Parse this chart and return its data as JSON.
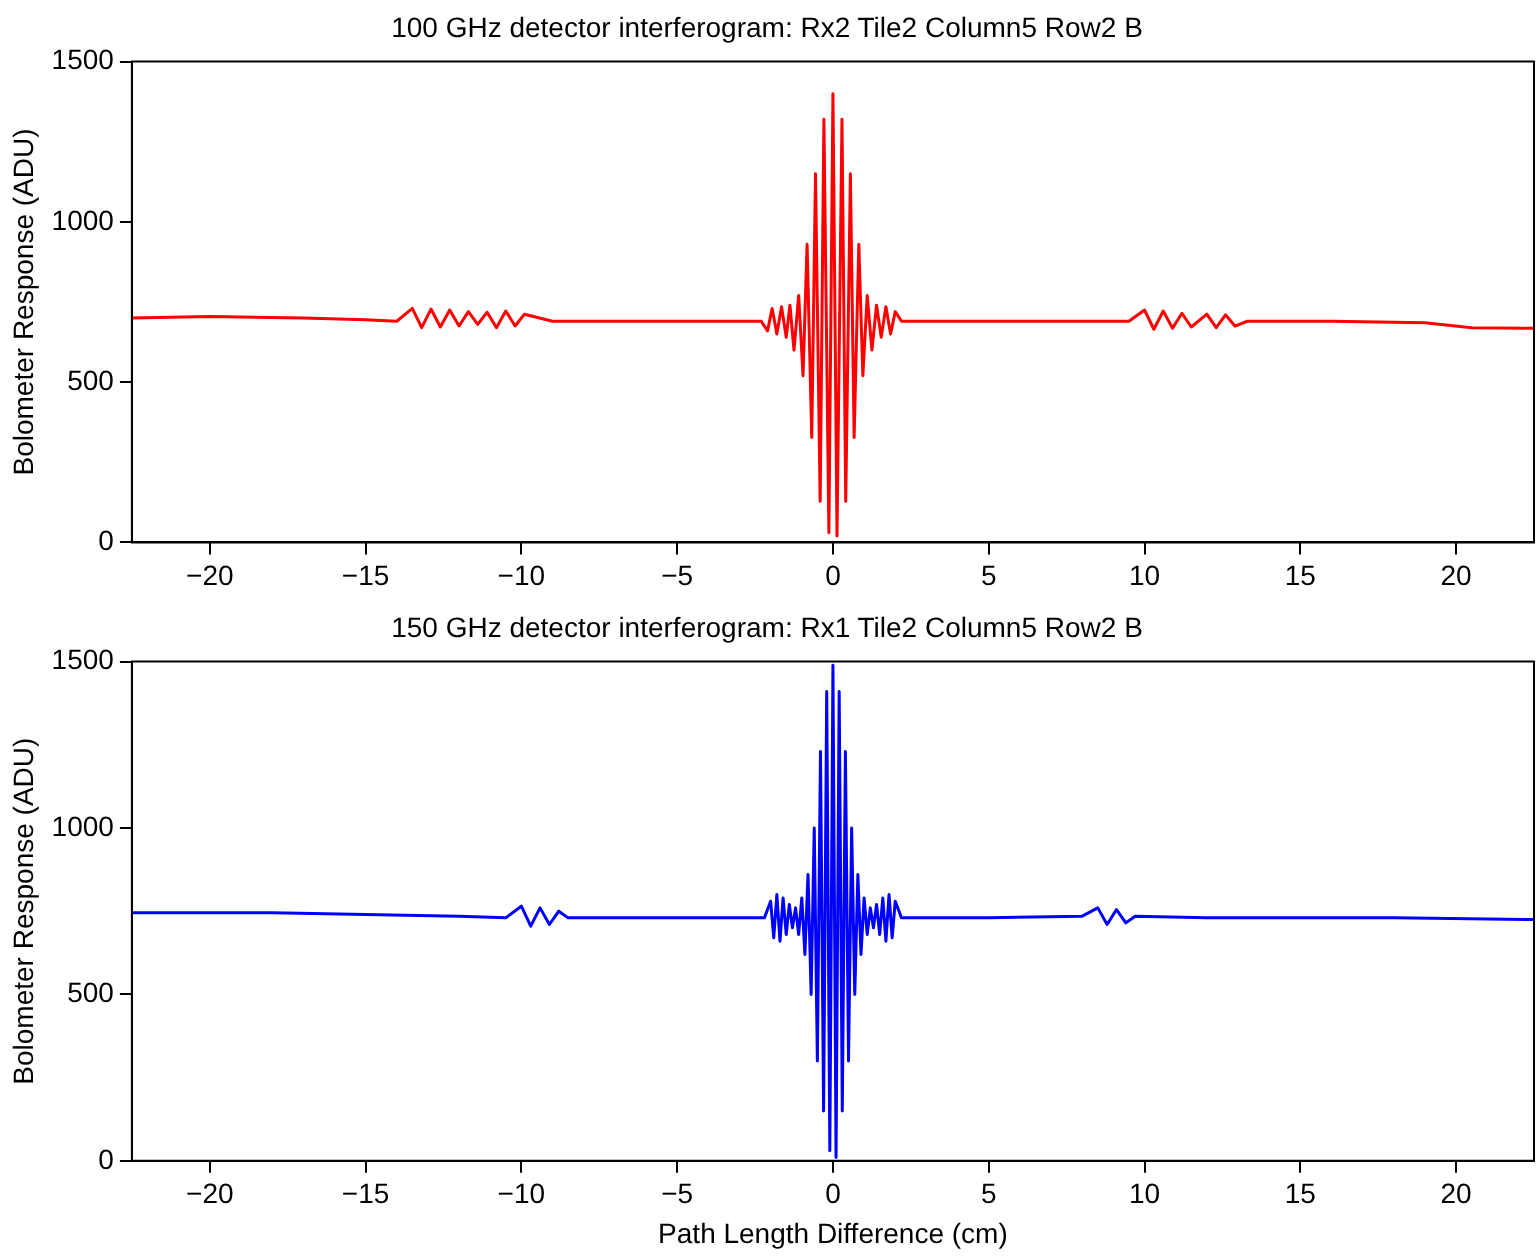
{
  "chart_data": [
    {
      "type": "line",
      "title": "100 GHz detector interferogram: Rx2 Tile2 Column5 Row2 B",
      "ylabel": "Bolometer Response (ADU)",
      "legend": false,
      "grid": false,
      "marker": "none",
      "line_style": "solid",
      "xlim": [
        -22.5,
        22.5
      ],
      "xticks": [
        {
          "value": -20,
          "label": "−20"
        },
        {
          "value": -15,
          "label": "−15"
        },
        {
          "value": -10,
          "label": "−10"
        },
        {
          "value": -5,
          "label": "−5"
        },
        0,
        5,
        10,
        15,
        20
      ],
      "ylim": [
        0,
        1500
      ],
      "yticks": [
        0,
        500,
        1000,
        1500
      ],
      "series": [
        {
          "color": "#ff0000",
          "x": [
            -22.5,
            -20,
            -17,
            -15,
            -14,
            -13.5,
            -13.2,
            -12.9,
            -12.6,
            -12.3,
            -12,
            -11.7,
            -11.4,
            -11.1,
            -10.8,
            -10.5,
            -10.2,
            -9.9,
            -9,
            -6,
            -3,
            -2.3,
            -2.1,
            -1.95,
            -1.8,
            -1.65,
            -1.5,
            -1.38,
            -1.25,
            -1.1,
            -0.96,
            -0.83,
            -0.68,
            -0.56,
            -0.41,
            -0.29,
            -0.13,
            0,
            0.13,
            0.29,
            0.41,
            0.56,
            0.68,
            0.83,
            0.96,
            1.1,
            1.25,
            1.4,
            1.55,
            1.7,
            1.85,
            2,
            2.2,
            5,
            8,
            9.5,
            10,
            10.3,
            10.6,
            10.9,
            11.2,
            11.5,
            12,
            12.3,
            12.6,
            12.9,
            13.3,
            16,
            19,
            20.5,
            22.5
          ],
          "values": [
            700,
            705,
            700,
            695,
            690,
            730,
            670,
            728,
            672,
            725,
            675,
            720,
            680,
            718,
            670,
            722,
            675,
            712,
            690,
            690,
            690,
            690,
            660,
            730,
            650,
            735,
            640,
            740,
            600,
            770,
            520,
            930,
            327,
            1150,
            128,
            1320,
            30,
            1400,
            20,
            1320,
            128,
            1150,
            327,
            930,
            520,
            770,
            600,
            740,
            640,
            735,
            650,
            720,
            690,
            690,
            690,
            690,
            725,
            665,
            722,
            668,
            715,
            672,
            712,
            670,
            710,
            675,
            690,
            690,
            685,
            670,
            668
          ]
        }
      ]
    },
    {
      "type": "line",
      "title": "150 GHz detector interferogram: Rx1 Tile2 Column5 Row2 B",
      "xlabel": "Path Length Difference (cm)",
      "ylabel": "Bolometer Response (ADU)",
      "legend": false,
      "grid": false,
      "marker": "none",
      "line_style": "solid",
      "xlim": [
        -22.5,
        22.5
      ],
      "xticks": [
        {
          "value": -20,
          "label": "−20"
        },
        {
          "value": -15,
          "label": "−15"
        },
        {
          "value": -10,
          "label": "−10"
        },
        {
          "value": -5,
          "label": "−5"
        },
        0,
        5,
        10,
        15,
        20
      ],
      "ylim": [
        0,
        1500
      ],
      "yticks": [
        0,
        500,
        1000,
        1500
      ],
      "series": [
        {
          "color": "#0000ff",
          "x": [
            -22.5,
            -18,
            -15,
            -12,
            -10.5,
            -10,
            -9.7,
            -9.4,
            -9.1,
            -8.8,
            -8.5,
            -4,
            -2.2,
            -2,
            -1.9,
            -1.8,
            -1.7,
            -1.6,
            -1.5,
            -1.4,
            -1.3,
            -1.2,
            -1.1,
            -1,
            -0.9,
            -0.8,
            -0.7,
            -0.6,
            -0.5,
            -0.4,
            -0.3,
            -0.2,
            -0.1,
            0,
            0.1,
            0.2,
            0.3,
            0.4,
            0.5,
            0.6,
            0.7,
            0.8,
            0.9,
            1,
            1.1,
            1.2,
            1.3,
            1.4,
            1.5,
            1.6,
            1.7,
            1.8,
            1.9,
            2,
            2.2,
            5,
            8,
            8.5,
            8.8,
            9.1,
            9.4,
            9.7,
            12,
            18,
            22.5
          ],
          "values": [
            745,
            745,
            740,
            735,
            730,
            765,
            705,
            760,
            710,
            750,
            730,
            730,
            730,
            780,
            670,
            800,
            660,
            790,
            680,
            770,
            700,
            760,
            680,
            790,
            620,
            860,
            500,
            1000,
            300,
            1230,
            150,
            1410,
            30,
            1489,
            10,
            1410,
            150,
            1230,
            300,
            1000,
            500,
            860,
            620,
            790,
            680,
            760,
            700,
            770,
            680,
            790,
            660,
            800,
            670,
            780,
            730,
            730,
            735,
            760,
            710,
            755,
            715,
            735,
            730,
            730,
            725
          ]
        }
      ]
    }
  ]
}
